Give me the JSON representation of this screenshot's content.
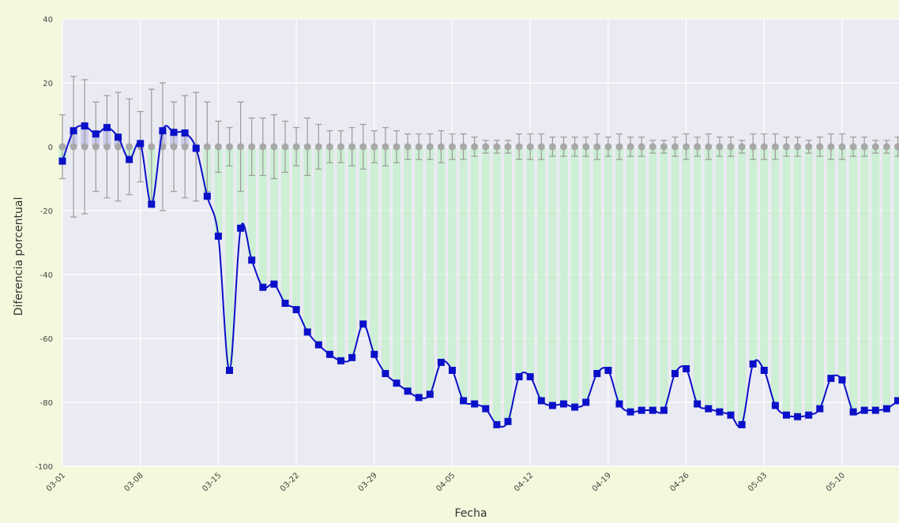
{
  "chart_data": {
    "type": "line",
    "title": "",
    "xlabel": "Fecha",
    "ylabel": "Diferencia porcentual",
    "ylim": [
      -100,
      40
    ],
    "yticks": [
      40,
      20,
      0,
      -20,
      -40,
      -60,
      -80,
      -100
    ],
    "ytick_labels": [
      "40",
      "20",
      "0",
      "-20",
      "-40",
      "-60",
      "-80",
      "-100"
    ],
    "xtick_labels": [
      "03-01",
      "03-08",
      "03-15",
      "03-22",
      "03-29",
      "04-05",
      "04-12",
      "04-19",
      "04-26",
      "05-03",
      "05-10"
    ],
    "grid": true,
    "legend": "none",
    "series": [
      {
        "type": "line",
        "color": "#0a10c8",
        "marker": "square",
        "x_start": "03-01",
        "values": [
          -4.5,
          5,
          6.5,
          4,
          6,
          3,
          -4,
          1,
          -18,
          5,
          4.5,
          4.3,
          -0.5,
          -15.5,
          -28,
          -70,
          -25.5,
          -35.5,
          -44,
          -43,
          -49,
          -51,
          -58,
          -62,
          -65,
          -67,
          -66,
          -55.5,
          -65,
          -71,
          -74,
          -76.5,
          -78.5,
          -77.5,
          -67.5,
          -70,
          -79.5,
          -80.5,
          -82,
          -87,
          -86,
          -72,
          -72,
          -79.5,
          -81,
          -80.5,
          -81.5,
          -80,
          -71,
          -70,
          -80.5,
          -83,
          -82.5,
          -82.5,
          -82.5,
          -71,
          -69.5,
          -80.5,
          -82,
          -83,
          -84,
          -87,
          -68,
          -70,
          -81,
          -84,
          -84.5,
          -84,
          -82,
          -72.5,
          -73,
          -83,
          -82.5,
          -82.5,
          -82,
          -79.5
        ]
      },
      {
        "type": "errorbar",
        "color": "#9a9a9a",
        "x_start": "03-01",
        "values": [
          0,
          0,
          0,
          0,
          0,
          0,
          0,
          0,
          0,
          0,
          0,
          0,
          0,
          0,
          0,
          0,
          0,
          0,
          0,
          0,
          0,
          0,
          0,
          0,
          0,
          0,
          0,
          0,
          0,
          0,
          0,
          0,
          0,
          0,
          0,
          0,
          0,
          0,
          0,
          0,
          0,
          0,
          0,
          0,
          0,
          0,
          0,
          0,
          0,
          0,
          0,
          0,
          0,
          0,
          0,
          0,
          0,
          0,
          0,
          0,
          0,
          0,
          0,
          0,
          0,
          0,
          0,
          0,
          0,
          0,
          0,
          0,
          0,
          0,
          0,
          0
        ],
        "errors": [
          10,
          22,
          21,
          14,
          16,
          17,
          15,
          11,
          18,
          20,
          14,
          16,
          17,
          14,
          8,
          6,
          14,
          9,
          9,
          10,
          8,
          6,
          9,
          7,
          5,
          5,
          6,
          7,
          5,
          6,
          5,
          4,
          4,
          4,
          5,
          4,
          4,
          3,
          2,
          2,
          2,
          4,
          4,
          4,
          3,
          3,
          3,
          3,
          4,
          3,
          4,
          3,
          3,
          2,
          2,
          3,
          4,
          3,
          4,
          3,
          3,
          2,
          4,
          4,
          4,
          3,
          3,
          2,
          3,
          4,
          4,
          3,
          3,
          2,
          2,
          3
        ]
      }
    ],
    "fill": {
      "negative_color": "#c8f0cf",
      "positive_color": "#c7c6ea",
      "between": "series and 0"
    }
  }
}
